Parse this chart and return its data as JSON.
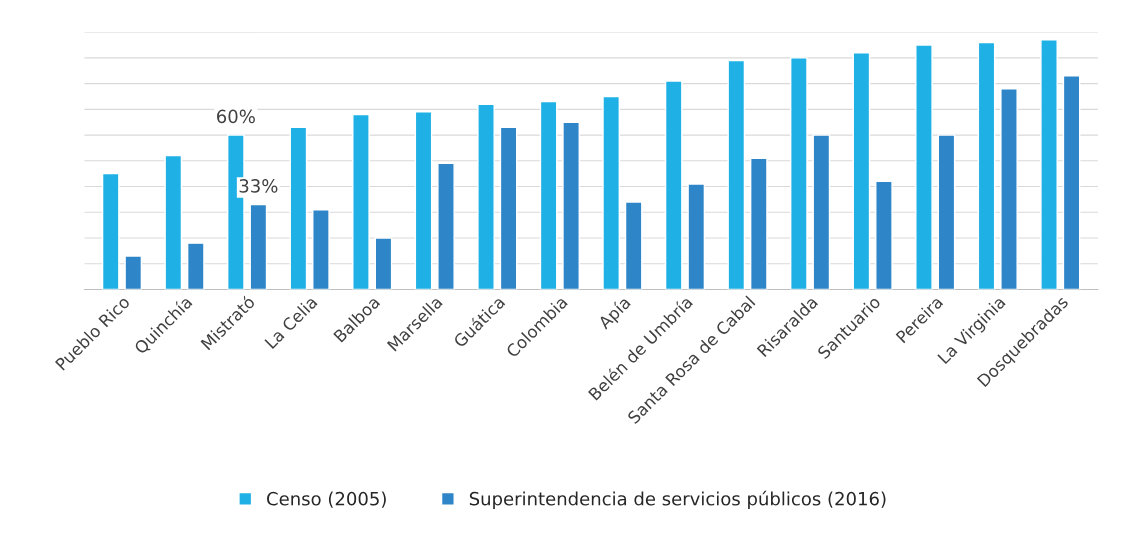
{
  "chart_data": {
    "type": "bar",
    "categories": [
      "Pueblo Rico",
      "Quinchía",
      "Mistrató",
      "La Celia",
      "Balboa",
      "Marsella",
      "Guática",
      "Colombia",
      "Apía",
      "Belén de Umbría",
      "Santa Rosa de Cabal",
      "Risaralda",
      "Santuario",
      "Pereira",
      "La Virginia",
      "Dosquebradas"
    ],
    "series": [
      {
        "name": "Censo (2005)",
        "color": "#1fb0e6",
        "values": [
          45,
          52,
          60,
          63,
          68,
          69,
          72,
          73,
          75,
          81,
          89,
          90,
          92,
          95,
          96,
          97
        ],
        "value_labels": [
          null,
          null,
          "60%",
          null,
          null,
          null,
          null,
          null,
          null,
          null,
          null,
          null,
          null,
          null,
          null,
          null
        ]
      },
      {
        "name": "Superintendencia de servicios públicos (2016)",
        "color": "#2e86c9",
        "values": [
          13,
          18,
          33,
          31,
          20,
          49,
          63,
          65,
          34,
          41,
          51,
          60,
          42,
          60,
          78,
          83
        ],
        "value_labels": [
          null,
          null,
          "33%",
          null,
          null,
          null,
          null,
          null,
          null,
          null,
          null,
          null,
          null,
          null,
          null,
          null
        ]
      }
    ],
    "ylim": [
      0,
      100
    ],
    "yticks": [
      {
        "value": 0,
        "label": null
      },
      {
        "value": 10,
        "label": null
      },
      {
        "value": 20,
        "label": null
      },
      {
        "value": 30,
        "label": null
      },
      {
        "value": 40,
        "label": null
      },
      {
        "value": 50,
        "label": null
      },
      {
        "value": 60,
        "label": null
      },
      {
        "value": 70,
        "label": null
      },
      {
        "value": 80,
        "label": null
      },
      {
        "value": 90,
        "label": null
      },
      {
        "value": 100,
        "label": null
      }
    ],
    "tick_labels": "x",
    "grid": "y",
    "legend": "bottom"
  }
}
